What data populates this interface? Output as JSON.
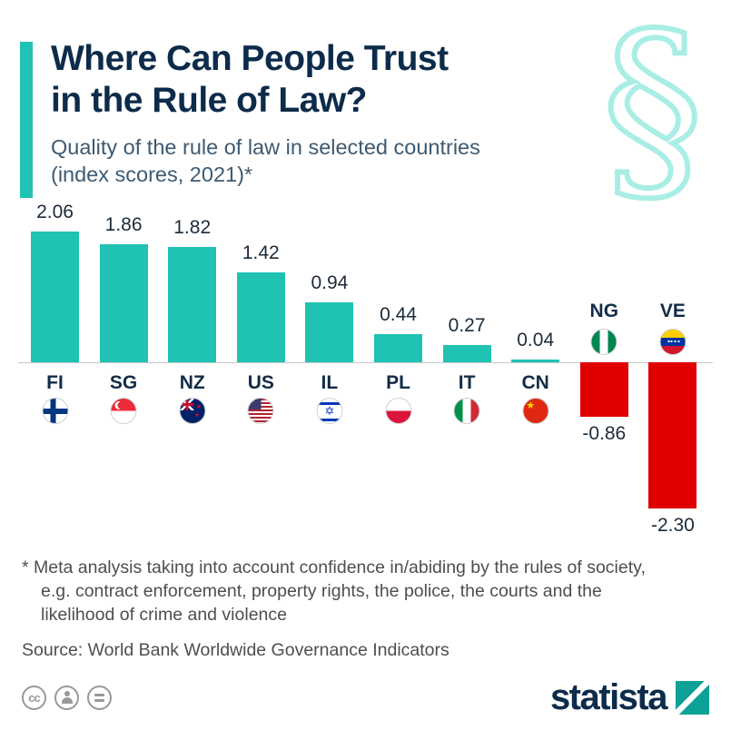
{
  "theme": {
    "accent_teal": "#1fc2b3",
    "negative_red": "#e00000",
    "navy": "#0d2b4a",
    "logo_teal": "#0ea197"
  },
  "header": {
    "title": "Where Can People Trust\nin the Rule of Law?",
    "subtitle": "Quality of the rule of law in selected countries\n(index scores, 2021)*",
    "watermark_glyph": "§"
  },
  "chart_data": {
    "type": "bar",
    "title": "Where Can People Trust in the Rule of Law?",
    "subtitle": "Quality of the rule of law in selected countries (index scores, 2021)*",
    "unit": "index score",
    "baseline": 0,
    "ylim": [
      -2.5,
      2.2
    ],
    "grid": false,
    "legend": "none",
    "positive_color": "#1fc2b3",
    "negative_color": "#e00000",
    "categories": [
      "FI",
      "SG",
      "NZ",
      "US",
      "IL",
      "PL",
      "IT",
      "CN",
      "NG",
      "VE"
    ],
    "values": [
      2.06,
      1.86,
      1.82,
      1.42,
      0.94,
      0.44,
      0.27,
      0.04,
      -0.86,
      -2.3
    ],
    "countries": [
      {
        "code": "FI",
        "label": "2.06",
        "value": 2.06
      },
      {
        "code": "SG",
        "label": "1.86",
        "value": 1.86
      },
      {
        "code": "NZ",
        "label": "1.82",
        "value": 1.82
      },
      {
        "code": "US",
        "label": "1.42",
        "value": 1.42
      },
      {
        "code": "IL",
        "label": "0.94",
        "value": 0.94
      },
      {
        "code": "PL",
        "label": "0.44",
        "value": 0.44
      },
      {
        "code": "IT",
        "label": "0.27",
        "value": 0.27
      },
      {
        "code": "CN",
        "label": "0.04",
        "value": 0.04
      },
      {
        "code": "NG",
        "label": "-0.86",
        "value": -0.86
      },
      {
        "code": "VE",
        "label": "-2.30",
        "value": -2.3
      }
    ]
  },
  "notes": {
    "methodology": "* Meta analysis taking into account confidence in/abiding by the rules of society,\ne.g. contract enforcement, property rights, the police, the courts and the\nlikelihood of crime and violence",
    "source": "Source: World Bank Worldwide Governance Indicators"
  },
  "footer": {
    "cc_label": "cc",
    "license_icons": [
      "cc-icon",
      "attribution-person-icon",
      "equals-icon"
    ],
    "brand": "statista"
  }
}
